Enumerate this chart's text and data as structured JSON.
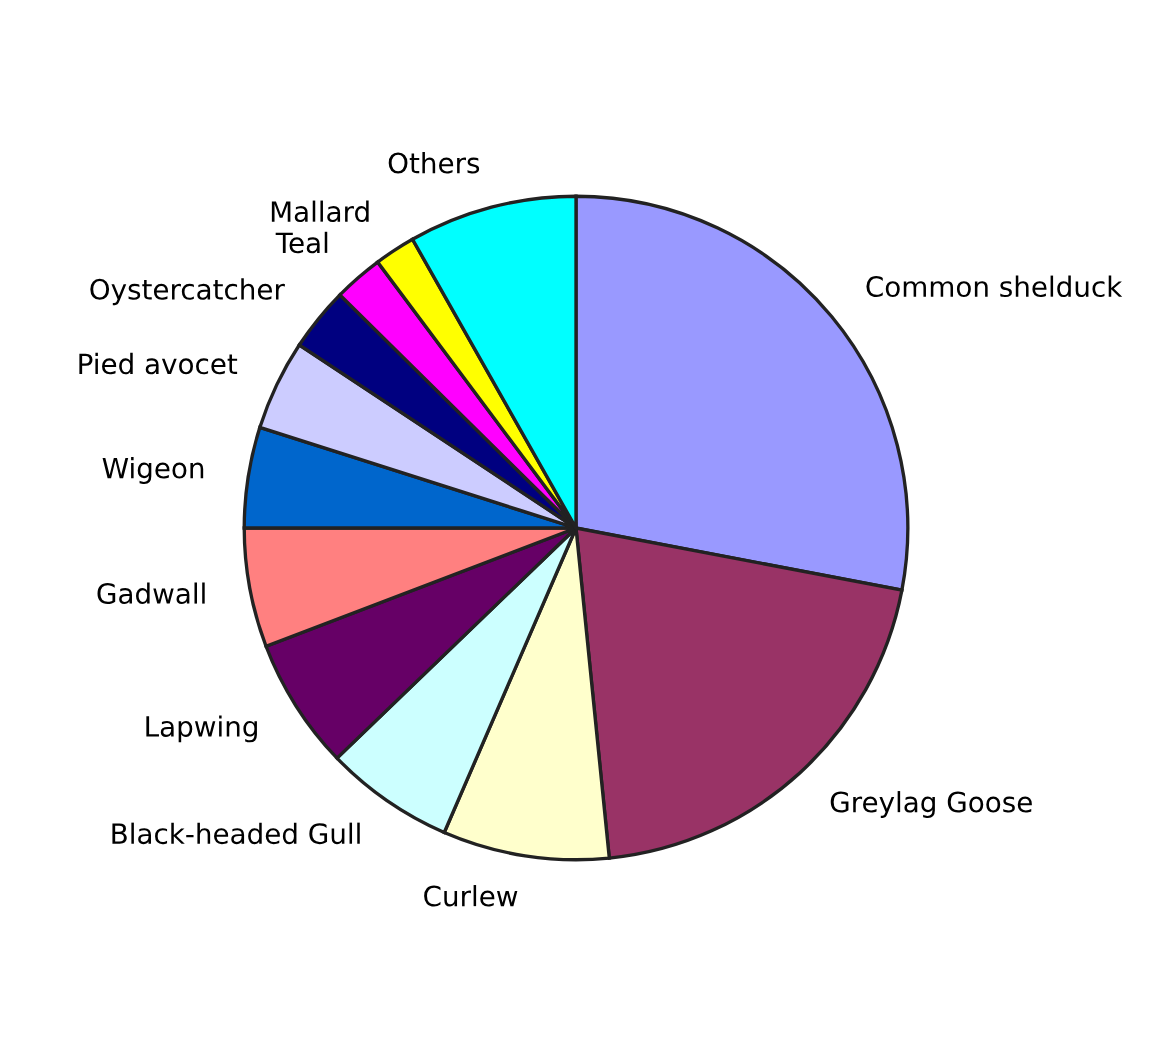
{
  "chart_data": {
    "type": "pie",
    "categories": [
      "Common shelduck",
      "Greylag Goose",
      "Curlew",
      "Black-headed Gull",
      "Lapwing",
      "Gadwall",
      "Wigeon",
      "Pied avocet",
      "Oystercatcher",
      "Teal",
      "Mallard",
      "Others"
    ],
    "values": [
      28.0,
      20.4,
      8.1,
      6.3,
      6.4,
      5.8,
      4.9,
      4.4,
      3.1,
      2.4,
      2.0,
      8.2
    ],
    "colors": [
      "#9999ff",
      "#993366",
      "#ffffcc",
      "#ccffff",
      "#660066",
      "#ff8080",
      "#0066cc",
      "#ccccff",
      "#000080",
      "#ff00ff",
      "#ffff00",
      "#00ffff"
    ],
    "legend": false
  }
}
